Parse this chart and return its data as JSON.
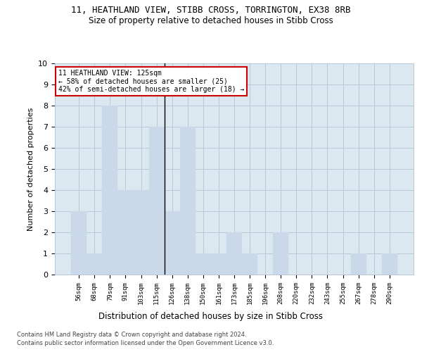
{
  "title1": "11, HEATHLAND VIEW, STIBB CROSS, TORRINGTON, EX38 8RB",
  "title2": "Size of property relative to detached houses in Stibb Cross",
  "xlabel": "Distribution of detached houses by size in Stibb Cross",
  "ylabel": "Number of detached properties",
  "footer1": "Contains HM Land Registry data © Crown copyright and database right 2024.",
  "footer2": "Contains public sector information licensed under the Open Government Licence v3.0.",
  "annotation_title": "11 HEATHLAND VIEW: 125sqm",
  "annotation_line2": "← 58% of detached houses are smaller (25)",
  "annotation_line3": "42% of semi-detached houses are larger (18) →",
  "subject_bin_index": 6,
  "bar_color": "#c9d9ea",
  "subject_line_color": "#000000",
  "annotation_box_color": "#ffffff",
  "annotation_box_edgecolor": "#cc0000",
  "grid_color": "#b8c8d8",
  "bg_color": "#dce8f0",
  "categories": [
    "56sqm",
    "68sqm",
    "79sqm",
    "91sqm",
    "103sqm",
    "115sqm",
    "126sqm",
    "138sqm",
    "150sqm",
    "161sqm",
    "173sqm",
    "185sqm",
    "196sqm",
    "208sqm",
    "220sqm",
    "232sqm",
    "243sqm",
    "255sqm",
    "267sqm",
    "278sqm",
    "290sqm"
  ],
  "values": [
    3,
    1,
    8,
    4,
    4,
    7,
    3,
    7,
    1,
    1,
    2,
    1,
    0,
    2,
    0,
    0,
    0,
    0,
    1,
    0,
    1
  ],
  "ylim": [
    0,
    10
  ],
  "yticks": [
    0,
    1,
    2,
    3,
    4,
    5,
    6,
    7,
    8,
    9,
    10
  ]
}
